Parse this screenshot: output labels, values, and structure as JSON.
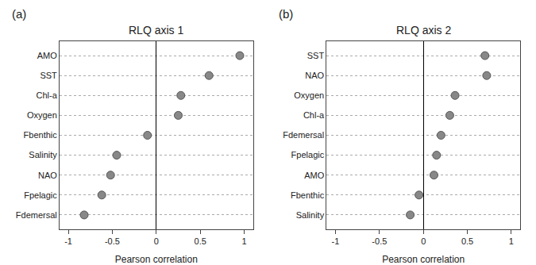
{
  "chart_data": [
    {
      "type": "scatter",
      "title": "RLQ axis 1",
      "annotations": [
        {
          "text": "(a)"
        }
      ],
      "categories": [
        "AMO",
        "SST",
        "Chl-a",
        "Oxygen",
        "Fbenthic",
        "Salinity",
        "NAO",
        "Fpelagic",
        "Fdemersal"
      ],
      "values": [
        0.95,
        0.6,
        0.28,
        0.25,
        -0.1,
        -0.45,
        -0.52,
        -0.62,
        -0.82
      ],
      "xlabel": "Pearson correlation",
      "xlim": [
        -1.1,
        1.1
      ],
      "xticks": [
        -1,
        -0.5,
        0,
        0.5,
        1
      ],
      "color": "#888888",
      "grid": true
    },
    {
      "type": "scatter",
      "title": "RLQ axis 2",
      "annotations": [
        {
          "text": "(b)"
        }
      ],
      "categories": [
        "SST",
        "NAO",
        "Oxygen",
        "Chl-a",
        "Fdemersal",
        "Fpelagic",
        "AMO",
        "Fbenthic",
        "Salinity"
      ],
      "values": [
        0.7,
        0.72,
        0.36,
        0.3,
        0.2,
        0.15,
        0.12,
        -0.05,
        -0.15
      ],
      "xlabel": "Pearson correlation",
      "xlim": [
        -1.1,
        1.1
      ],
      "xticks": [
        -1,
        -0.5,
        0,
        0.5,
        1
      ],
      "color": "#888888",
      "grid": true
    }
  ]
}
